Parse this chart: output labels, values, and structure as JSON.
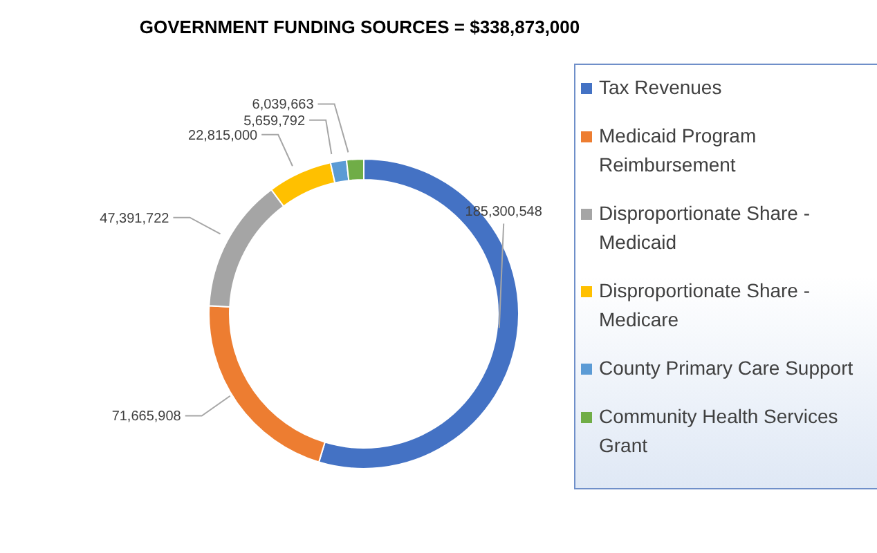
{
  "chart_data": {
    "type": "donut",
    "title": "GOVERNMENT FUNDING SOURCES = $338,873,000",
    "categories": [
      "Tax Revenues",
      "Medicaid Program Reimbursement",
      "Disproportionate Share - Medicaid",
      "Disproportionate Share - Medicare",
      "County Primary Care Support",
      "Community Health Services Grant"
    ],
    "values": [
      185300548,
      71665908,
      47391722,
      22815000,
      5659792,
      6039663
    ],
    "colors": [
      "#4472c4",
      "#ed7d31",
      "#a5a5a5",
      "#ffc000",
      "#5b9bd5",
      "#70ad47"
    ],
    "value_labels": [
      "185,300,548",
      "71,665,908",
      "47,391,722",
      "22,815,000",
      "5,659,792",
      "6,039,663"
    ],
    "legend": "right"
  }
}
